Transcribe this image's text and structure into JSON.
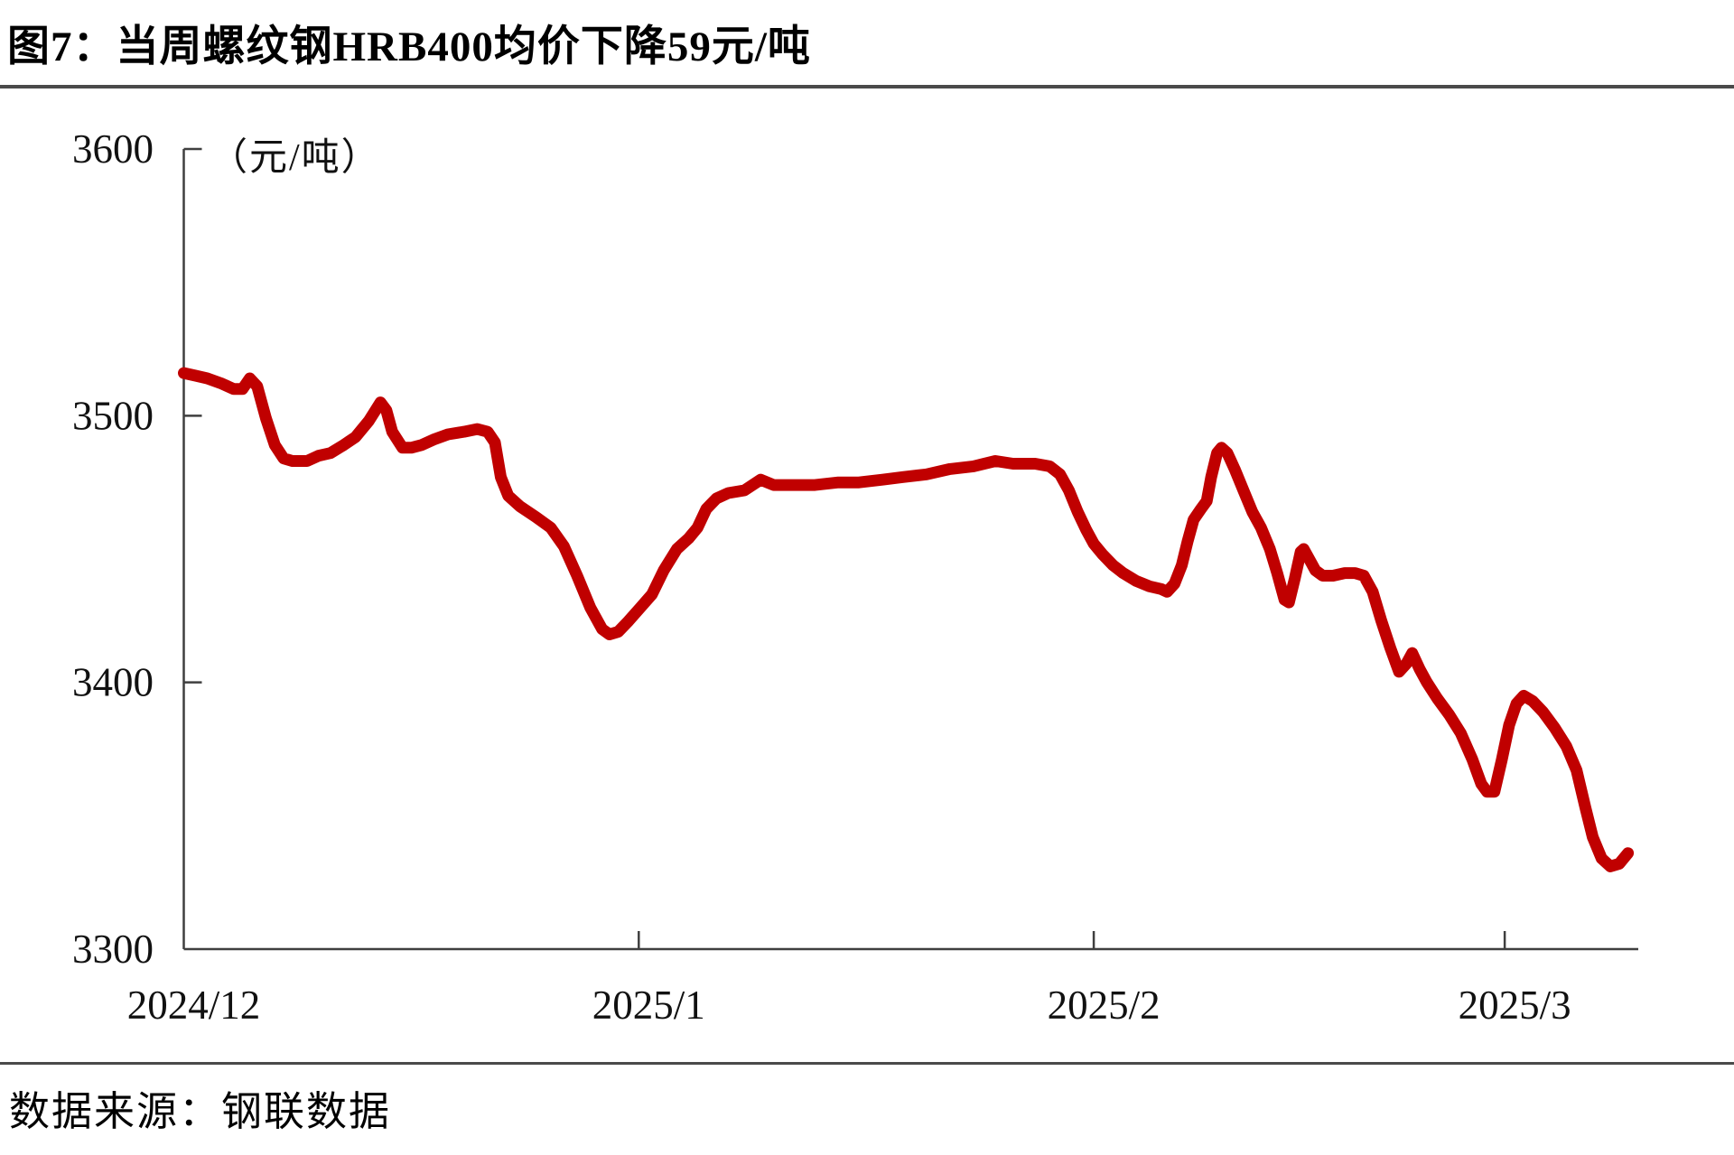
{
  "page": {
    "title": "图7：当周螺纹钢HRB400均价下降59元/吨",
    "source": "数据来源：钢联数据"
  },
  "colors": {
    "line": "#c00000",
    "axis": "#3f3f3f",
    "text": "#111111",
    "rule": "#4a4a4a",
    "background": "#ffffff"
  },
  "chart_data": {
    "type": "line",
    "title": "当周螺纹钢HRB400均价下降59元/吨",
    "unit_label": "（元/吨）",
    "xlabel": "",
    "ylabel": "",
    "ylim": [
      3300,
      3600
    ],
    "y_ticks": [
      3300,
      3400,
      3500,
      3600
    ],
    "x_domain_days": [
      0,
      99.1
    ],
    "x_ticks": [
      {
        "day": 0,
        "label": "2024/12"
      },
      {
        "day": 31,
        "label": "2025/1"
      },
      {
        "day": 62,
        "label": "2025/2"
      },
      {
        "day": 90,
        "label": "2025/3"
      }
    ],
    "grid": false,
    "legend": "none",
    "series": [
      {
        "name": "螺纹钢HRB400均价（元/吨）",
        "points": [
          [
            0,
            3516
          ],
          [
            0.8,
            3515
          ],
          [
            1.6,
            3514
          ],
          [
            2.6,
            3512
          ],
          [
            3.4,
            3510
          ],
          [
            4,
            3510
          ],
          [
            4.5,
            3514
          ],
          [
            5,
            3511
          ],
          [
            5.6,
            3499
          ],
          [
            6.2,
            3489
          ],
          [
            6.8,
            3484
          ],
          [
            7.4,
            3483
          ],
          [
            8.4,
            3483
          ],
          [
            9.2,
            3485
          ],
          [
            10,
            3486
          ],
          [
            10.9,
            3489
          ],
          [
            11.7,
            3492
          ],
          [
            12.6,
            3498
          ],
          [
            13.4,
            3505
          ],
          [
            13.8,
            3502
          ],
          [
            14.2,
            3494
          ],
          [
            14.9,
            3488
          ],
          [
            15.5,
            3488
          ],
          [
            16.2,
            3489
          ],
          [
            17,
            3491
          ],
          [
            18,
            3493
          ],
          [
            19.1,
            3494
          ],
          [
            20,
            3495
          ],
          [
            20.7,
            3494
          ],
          [
            21.2,
            3490
          ],
          [
            21.6,
            3477
          ],
          [
            22.1,
            3470
          ],
          [
            22.9,
            3466
          ],
          [
            24,
            3462
          ],
          [
            25,
            3458
          ],
          [
            25.9,
            3451
          ],
          [
            26.8,
            3440
          ],
          [
            27.7,
            3428
          ],
          [
            28.5,
            3420
          ],
          [
            29,
            3418
          ],
          [
            29.6,
            3419
          ],
          [
            30.3,
            3423
          ],
          [
            31.1,
            3428
          ],
          [
            31.9,
            3433
          ],
          [
            32.7,
            3442
          ],
          [
            33.6,
            3450
          ],
          [
            34.4,
            3454
          ],
          [
            35,
            3458
          ],
          [
            35.6,
            3465
          ],
          [
            36.3,
            3469
          ],
          [
            37.1,
            3471
          ],
          [
            38.2,
            3472
          ],
          [
            39.3,
            3476
          ],
          [
            40.2,
            3474
          ],
          [
            41.5,
            3474
          ],
          [
            43,
            3474
          ],
          [
            44.6,
            3475
          ],
          [
            46,
            3475
          ],
          [
            47.6,
            3476
          ],
          [
            49,
            3477
          ],
          [
            50.6,
            3478
          ],
          [
            52.2,
            3480
          ],
          [
            53.8,
            3481
          ],
          [
            55.3,
            3483
          ],
          [
            56.5,
            3482
          ],
          [
            58,
            3482
          ],
          [
            59,
            3481
          ],
          [
            59.7,
            3478
          ],
          [
            60.3,
            3472
          ],
          [
            60.9,
            3464
          ],
          [
            61.5,
            3457
          ],
          [
            62,
            3452
          ],
          [
            62.6,
            3448
          ],
          [
            63.3,
            3444
          ],
          [
            64,
            3441
          ],
          [
            64.9,
            3438
          ],
          [
            65.8,
            3436
          ],
          [
            66.6,
            3435
          ],
          [
            67,
            3434
          ],
          [
            67.5,
            3437
          ],
          [
            68,
            3444
          ],
          [
            68.4,
            3453
          ],
          [
            68.8,
            3461
          ],
          [
            69.3,
            3465
          ],
          [
            69.7,
            3468
          ],
          [
            70,
            3477
          ],
          [
            70.4,
            3486
          ],
          [
            70.7,
            3488
          ],
          [
            71.1,
            3486
          ],
          [
            71.6,
            3480
          ],
          [
            72.2,
            3472
          ],
          [
            72.8,
            3464
          ],
          [
            73.4,
            3458
          ],
          [
            74,
            3450
          ],
          [
            74.5,
            3441
          ],
          [
            75,
            3431
          ],
          [
            75.3,
            3430
          ],
          [
            75.7,
            3439
          ],
          [
            76.1,
            3449
          ],
          [
            76.3,
            3450
          ],
          [
            76.7,
            3446
          ],
          [
            77.1,
            3442
          ],
          [
            77.6,
            3440
          ],
          [
            78.3,
            3440
          ],
          [
            79.1,
            3441
          ],
          [
            79.8,
            3441
          ],
          [
            80.4,
            3440
          ],
          [
            81,
            3434
          ],
          [
            81.6,
            3423
          ],
          [
            82.2,
            3413
          ],
          [
            82.8,
            3404
          ],
          [
            83.3,
            3407
          ],
          [
            83.7,
            3411
          ],
          [
            84.2,
            3405
          ],
          [
            84.7,
            3400
          ],
          [
            85.4,
            3394
          ],
          [
            86.2,
            3388
          ],
          [
            87,
            3381
          ],
          [
            87.8,
            3371
          ],
          [
            88.4,
            3362
          ],
          [
            88.8,
            3359
          ],
          [
            89.3,
            3359
          ],
          [
            89.8,
            3371
          ],
          [
            90.3,
            3384
          ],
          [
            90.8,
            3392
          ],
          [
            91.3,
            3395
          ],
          [
            91.9,
            3393
          ],
          [
            92.6,
            3389
          ],
          [
            93.4,
            3383
          ],
          [
            94.2,
            3376
          ],
          [
            94.9,
            3367
          ],
          [
            95.5,
            3353
          ],
          [
            96,
            3342
          ],
          [
            96.6,
            3334
          ],
          [
            97.2,
            3331
          ],
          [
            97.8,
            3332
          ],
          [
            98.4,
            3336
          ]
        ]
      }
    ]
  }
}
